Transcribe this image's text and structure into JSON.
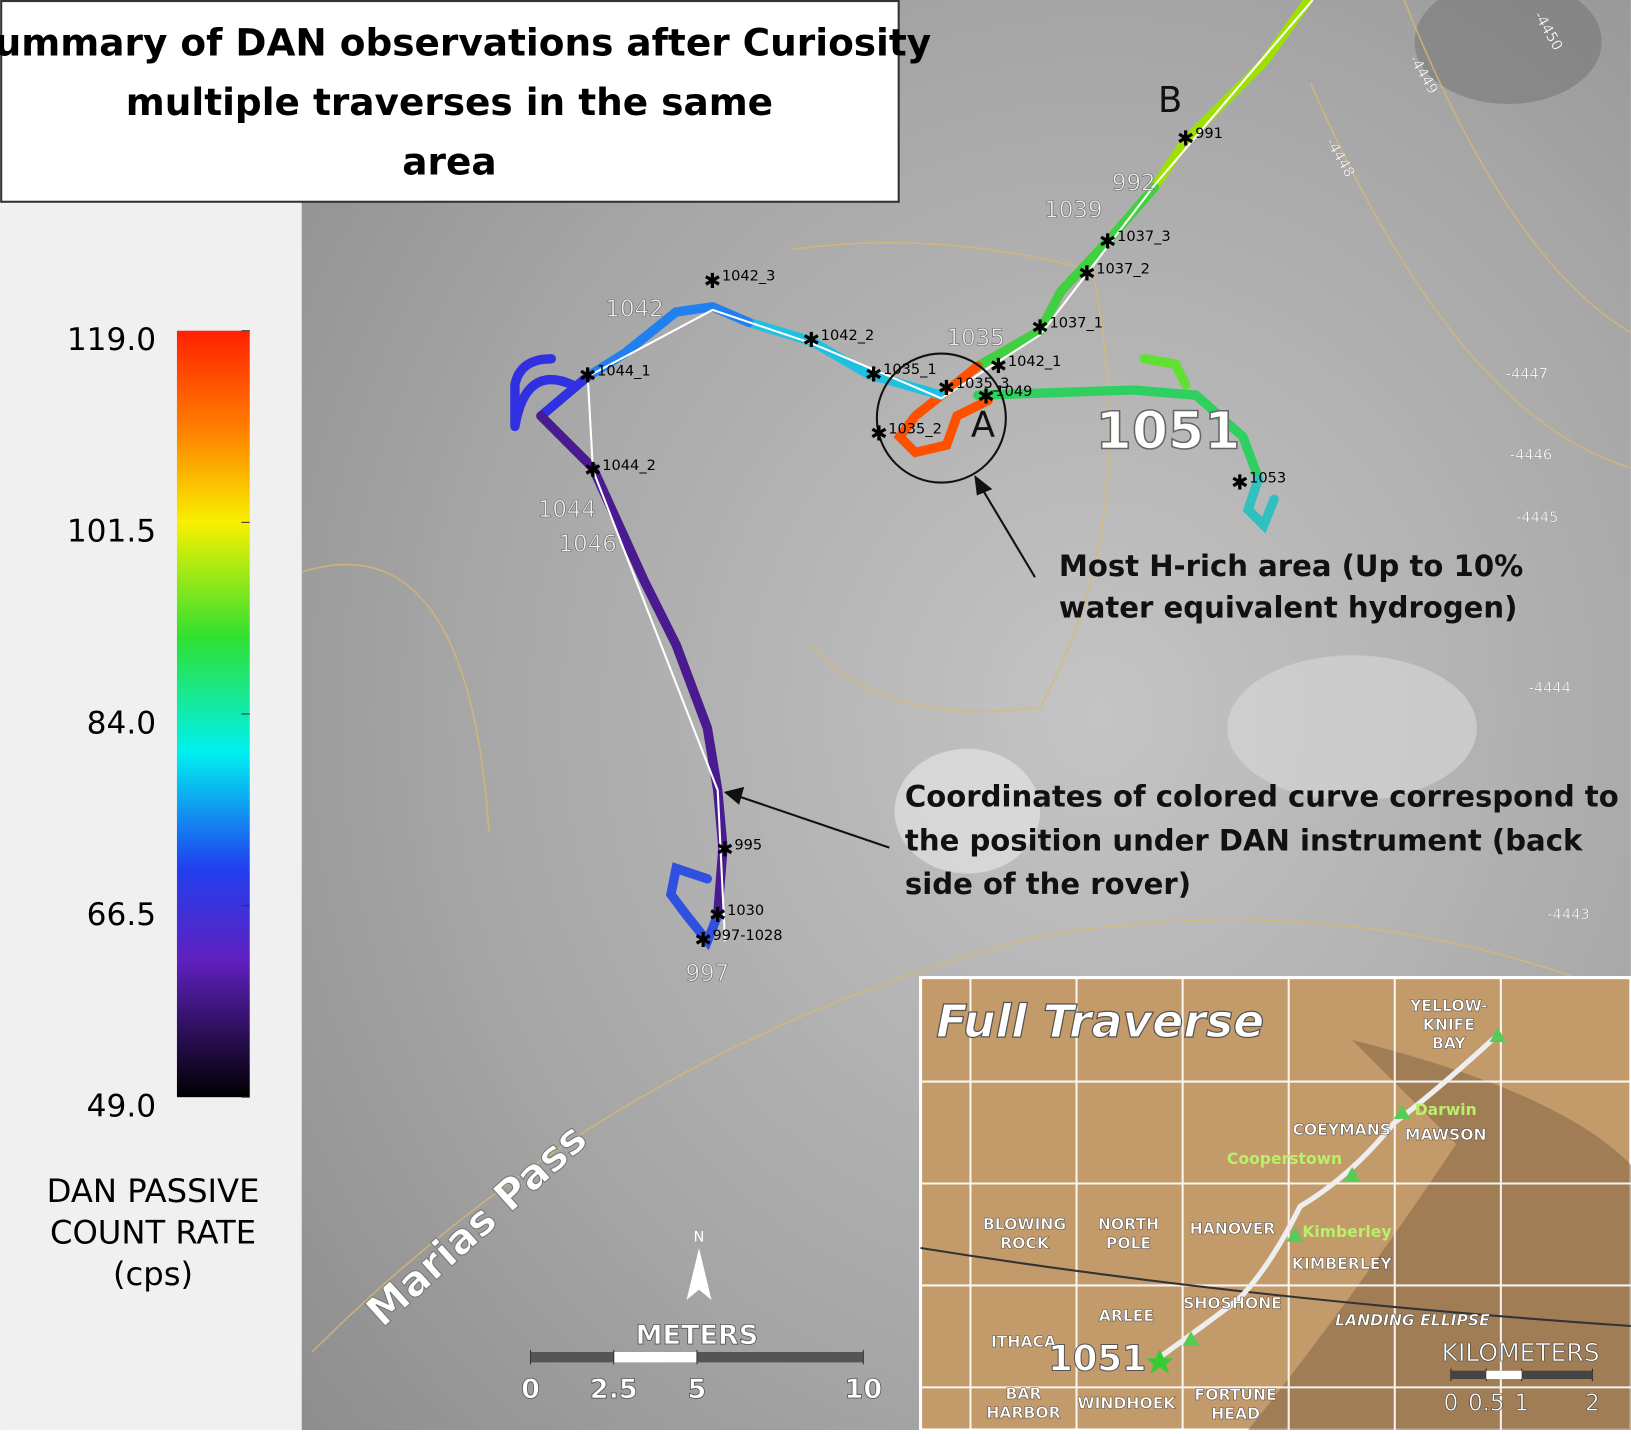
{
  "title": "Summary of DAN observations after Curiosity multiple traverses in the same area",
  "colorbar": {
    "label": [
      "DAN PASSIVE",
      "COUNT RATE",
      "(cps)"
    ],
    "range": [
      49,
      119
    ],
    "ticks": [
      {
        "value": 119,
        "label": "119.0"
      },
      {
        "value": 101.5,
        "label": "101.5"
      },
      {
        "value": 84,
        "label": "84.0"
      },
      {
        "value": 66.5,
        "label": "66.5"
      },
      {
        "value": 49,
        "label": "49.0"
      }
    ]
  },
  "annotations": [
    [
      "Most H-rich area (Up to 10%",
      "water equivalent hydrogen)"
    ],
    [
      "Coordinates of colored curve correspond to",
      "the position under DAN instrument (back",
      "side of the rover)"
    ]
  ],
  "sol_labels": [
    "991",
    "1037_3",
    "1037_2",
    "1037_1",
    "1042_3",
    "1042_2",
    "1035_1",
    "1044_1",
    "1044_2",
    "1035_2",
    "1035_3",
    "1049",
    "1042_1",
    "1053",
    "995",
    "1030",
    "997-1028"
  ],
  "gray_labels": [
    "1039",
    "992",
    "1042",
    "1035",
    "1044",
    "1046",
    "997"
  ],
  "points": [
    "A",
    "B"
  ],
  "big_label": "1051",
  "place": "Marias Pass",
  "contours": [
    "-4450",
    "-4449",
    "-4448",
    "-4447",
    "-4446",
    "-4445",
    "-4444",
    "-4443"
  ],
  "north": "N",
  "scale_bar": {
    "title": "METERS",
    "ticks": [
      0,
      2.5,
      5,
      10
    ]
  },
  "inset": {
    "title": "Full Traverse",
    "places": [
      [
        "YELLOW-",
        "KNIFE",
        "BAY"
      ],
      [
        "Darwin"
      ],
      [
        "COEYMANS"
      ],
      [
        "MAWSON"
      ],
      [
        "Cooperstown"
      ],
      [
        "BLOWING",
        "ROCK"
      ],
      [
        "NORTH",
        "POLE"
      ],
      [
        "HANOVER"
      ],
      [
        "Kimberley"
      ],
      [
        "KIMBERLEY"
      ],
      [
        "SHOSHONE"
      ],
      [
        "ARLEE"
      ],
      [
        "LANDING ELLIPSE"
      ],
      [
        "ITHACA"
      ],
      [
        "1051"
      ],
      [
        "BAR",
        "HARBOR"
      ],
      [
        "WINDHOEK"
      ],
      [
        "FORTUNE",
        "HEAD"
      ]
    ],
    "scale_title": "KILOMETERS",
    "scale_ticks": [
      0,
      0.5,
      1,
      2
    ]
  }
}
